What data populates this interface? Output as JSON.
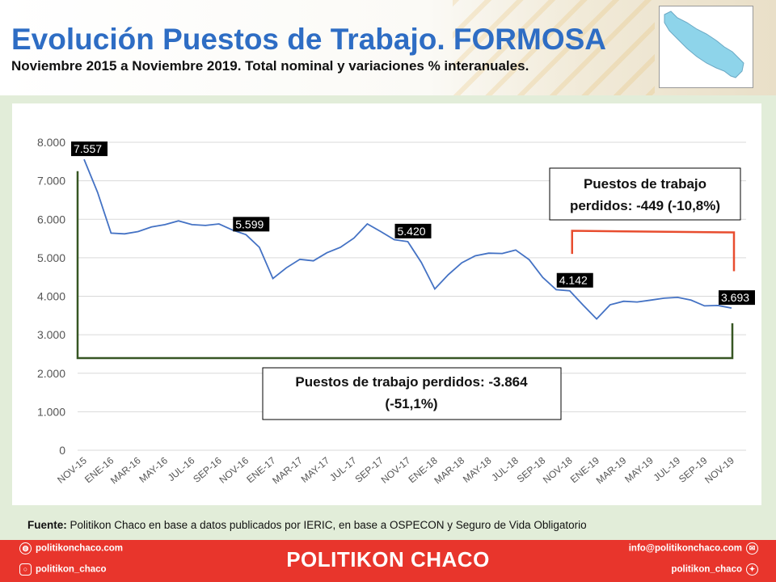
{
  "header": {
    "title": "Evolución Puestos de Trabajo. FORMOSA",
    "subtitle": "Noviembre 2015 a Noviembre 2019. Total nominal y variaciones % interanuales."
  },
  "chart_data": {
    "type": "line",
    "title": "",
    "xlabel": "",
    "ylabel": "",
    "ylim": [
      0,
      8000
    ],
    "yticks": [
      "0",
      "1.000",
      "2.000",
      "3.000",
      "4.000",
      "5.000",
      "6.000",
      "7.000",
      "8.000"
    ],
    "grid": true,
    "x_tick_labels": [
      "NOV-15",
      "ENE-16",
      "MAR-16",
      "MAY-16",
      "JUL-16",
      "SEP-16",
      "NOV-16",
      "ENE-17",
      "MAR-17",
      "MAY-17",
      "JUL-17",
      "SEP-17",
      "NOV-17",
      "ENE-18",
      "MAR-18",
      "MAY-18",
      "JUL-18",
      "SEP-18",
      "NOV-18",
      "ENE-19",
      "MAR-19",
      "MAY-19",
      "JUL-19",
      "SEP-19",
      "NOV-19"
    ],
    "series": [
      {
        "color": "#4472c4",
        "values": [
          7557,
          6700,
          5640,
          5620,
          5680,
          5800,
          5860,
          5960,
          5860,
          5840,
          5880,
          5720,
          5599,
          5270,
          4460,
          4740,
          4960,
          4920,
          5130,
          5270,
          5510,
          5880,
          5680,
          5470,
          5420,
          4880,
          4190,
          4560,
          4870,
          5050,
          5120,
          5110,
          5200,
          4950,
          4490,
          4170,
          4142,
          3770,
          3410,
          3780,
          3870,
          3850,
          3900,
          3950,
          3970,
          3900,
          3750,
          3760,
          3693
        ]
      }
    ],
    "data_labels": [
      {
        "index": 0,
        "text": "7.557"
      },
      {
        "index": 12,
        "text": "5.599"
      },
      {
        "index": 24,
        "text": "5.420"
      },
      {
        "index": 36,
        "text": "4.142"
      },
      {
        "index": 48,
        "text": "3.693"
      }
    ],
    "annotations": [
      {
        "text_lines": [
          "Puestos de trabajo",
          "perdidos: -449 (-10,8%)"
        ]
      },
      {
        "text_lines": [
          "Puestos de trabajo perdidos: -3.864",
          "(-51,1%)"
        ]
      }
    ]
  },
  "source": {
    "label": "Fuente:",
    "text": " Politikon Chaco en base a datos publicados por IERIC,  en base a OSPECON y Seguro de Vida Obligatorio"
  },
  "footer": {
    "brand": "POLITIKON CHACO",
    "web": "politikonchaco.com",
    "instagram": "politikon_chaco",
    "email": "info@politikonchaco.com",
    "twitter": "politikon_chaco"
  }
}
